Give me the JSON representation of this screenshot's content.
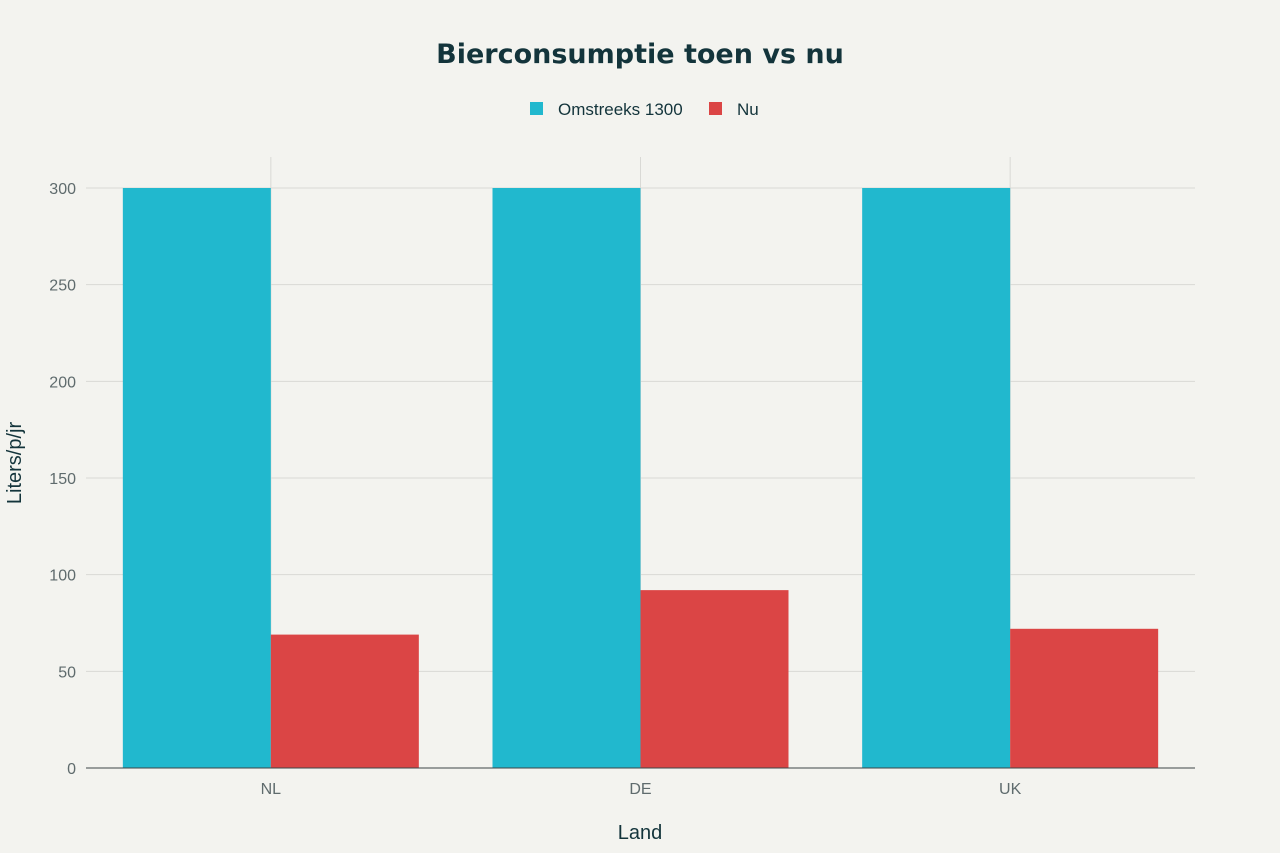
{
  "chart_data": {
    "type": "bar",
    "title": "Bierconsumptie toen vs nu",
    "xlabel": "Land",
    "ylabel": "Liters/p/jr",
    "categories": [
      "NL",
      "DE",
      "UK"
    ],
    "series": [
      {
        "name": "Omstreeks 1300",
        "color": "#21b8ce",
        "values": [
          300,
          300,
          300
        ]
      },
      {
        "name": "Nu",
        "color": "#db4545",
        "values": [
          69,
          92,
          72
        ]
      }
    ],
    "ylim": [
      0,
      300
    ],
    "yticks": [
      0,
      50,
      100,
      150,
      200,
      250,
      300
    ],
    "grid": true,
    "legend_position": "top-center"
  }
}
